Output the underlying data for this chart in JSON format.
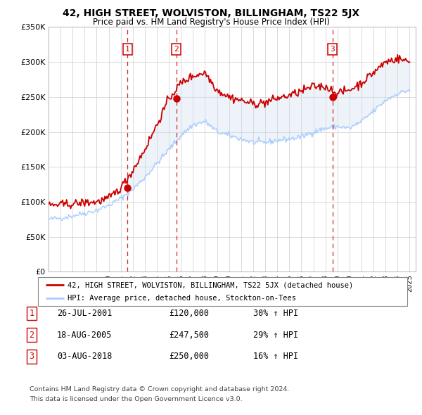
{
  "title": "42, HIGH STREET, WOLVISTON, BILLINGHAM, TS22 5JX",
  "subtitle": "Price paid vs. HM Land Registry's House Price Index (HPI)",
  "legend_line1": "42, HIGH STREET, WOLVISTON, BILLINGHAM, TS22 5JX (detached house)",
  "legend_line2": "HPI: Average price, detached house, Stockton-on-Tees",
  "footer1": "Contains HM Land Registry data © Crown copyright and database right 2024.",
  "footer2": "This data is licensed under the Open Government Licence v3.0.",
  "sale_color": "#cc0000",
  "hpi_color": "#aaccff",
  "fill_color": "#ccddf0",
  "ylim": [
    0,
    350000
  ],
  "yticks": [
    0,
    50000,
    100000,
    150000,
    200000,
    250000,
    300000,
    350000
  ],
  "ytick_labels": [
    "£0",
    "£50K",
    "£100K",
    "£150K",
    "£200K",
    "£250K",
    "£300K",
    "£350K"
  ],
  "xlim_start": 1995.0,
  "xlim_end": 2025.5,
  "transactions": [
    {
      "num": 1,
      "date_x": 2001.56,
      "price": 120000,
      "label": "1"
    },
    {
      "num": 2,
      "date_x": 2005.63,
      "price": 247500,
      "label": "2"
    },
    {
      "num": 3,
      "date_x": 2018.59,
      "price": 250000,
      "label": "3"
    }
  ],
  "table_rows": [
    [
      "1",
      "26-JUL-2001",
      "£120,000",
      "30% ↑ HPI"
    ],
    [
      "2",
      "18-AUG-2005",
      "£247,500",
      "29% ↑ HPI"
    ],
    [
      "3",
      "03-AUG-2018",
      "£250,000",
      "16% ↑ HPI"
    ]
  ],
  "hpi_base": [
    75000,
    77000,
    80000,
    84000,
    88000,
    95000,
    105000,
    118000,
    135000,
    155000,
    175000,
    195000,
    210000,
    215000,
    200000,
    195000,
    190000,
    185000,
    185000,
    188000,
    190000,
    193000,
    200000,
    205000,
    208000,
    205000,
    215000,
    230000,
    245000,
    255000,
    260000
  ],
  "sale_base": [
    95000,
    96000,
    97000,
    99000,
    100000,
    105000,
    120000,
    145000,
    175000,
    210000,
    247500,
    270000,
    280000,
    285000,
    260000,
    250000,
    245000,
    240000,
    242000,
    248000,
    252000,
    258000,
    265000,
    265000,
    255000,
    260000,
    270000,
    285000,
    300000,
    305000,
    300000
  ]
}
